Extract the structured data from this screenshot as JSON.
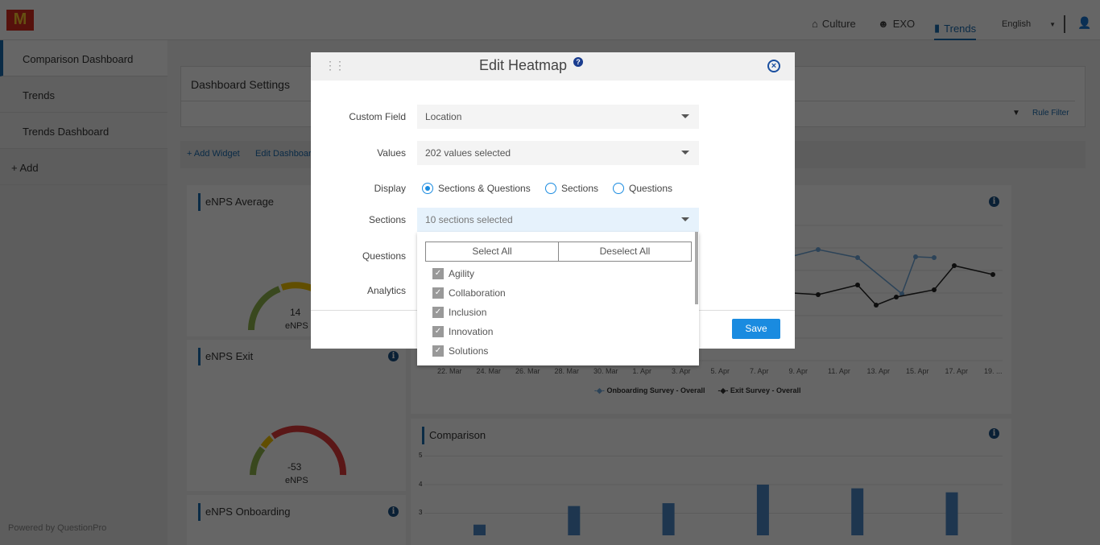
{
  "header": {
    "logo": "McDonald's",
    "nav": [
      {
        "label": "Culture",
        "icon": "home-icon"
      },
      {
        "label": "EXO",
        "icon": "smiley-icon"
      },
      {
        "label": "Trends",
        "icon": "bar-chart-icon",
        "active": true
      }
    ],
    "language": "English"
  },
  "sidebar": {
    "items": [
      {
        "label": "Comparison Dashboard",
        "active": true
      },
      {
        "label": "Trends"
      },
      {
        "label": "Trends Dashboard"
      }
    ],
    "add": "+ Add",
    "footer": "Powered by QuestionPro"
  },
  "dashboard": {
    "settings_title": "Dashboard Settings",
    "rule_filter": "Rule Filter",
    "add_widget": "Add Widget",
    "edit_dashboard": "Edit Dashboard"
  },
  "widgets": {
    "enps_average": {
      "title": "eNPS Average",
      "value": "14",
      "unit": "eNPS"
    },
    "enps_exit": {
      "title": "eNPS Exit",
      "value": "-53",
      "unit": "eNPS"
    },
    "enps_onboarding": {
      "title": "eNPS Onboarding"
    },
    "trend": {
      "x_labels": [
        "22. Mar",
        "24. Mar",
        "26. Mar",
        "28. Mar",
        "30. Mar",
        "1. Apr",
        "3. Apr",
        "5. Apr",
        "7. Apr",
        "9. Apr",
        "11. Apr",
        "13. Apr",
        "15. Apr",
        "17. Apr",
        "19. ..."
      ],
      "legend": [
        "Onboarding Survey - Overall",
        "Exit Survey - Overall"
      ],
      "colors": [
        "#6fa8dc",
        "#222222"
      ]
    },
    "comparison": {
      "title": "Comparison",
      "y_ticks": [
        "5",
        "4",
        "3"
      ],
      "values": [
        2.6,
        3.25,
        3.35,
        4.0,
        3.87,
        3.73
      ],
      "color": "#4a86c5"
    }
  },
  "modal": {
    "title": "Edit Heatmap",
    "custom_field_label": "Custom Field",
    "custom_field_value": "Location",
    "values_label": "Values",
    "values_value": "202 values selected",
    "display_label": "Display",
    "display_options": [
      "Sections & Questions",
      "Sections",
      "Questions"
    ],
    "display_selected": "Sections & Questions",
    "sections_label": "Sections",
    "sections_value": "10 sections selected",
    "questions_label": "Questions",
    "analytics_label": "Analytics",
    "save": "Save",
    "dropdown": {
      "select_all": "Select All",
      "deselect_all": "Deselect All",
      "items": [
        "Agility",
        "Collaboration",
        "Inclusion",
        "Innovation",
        "Solutions"
      ]
    }
  }
}
